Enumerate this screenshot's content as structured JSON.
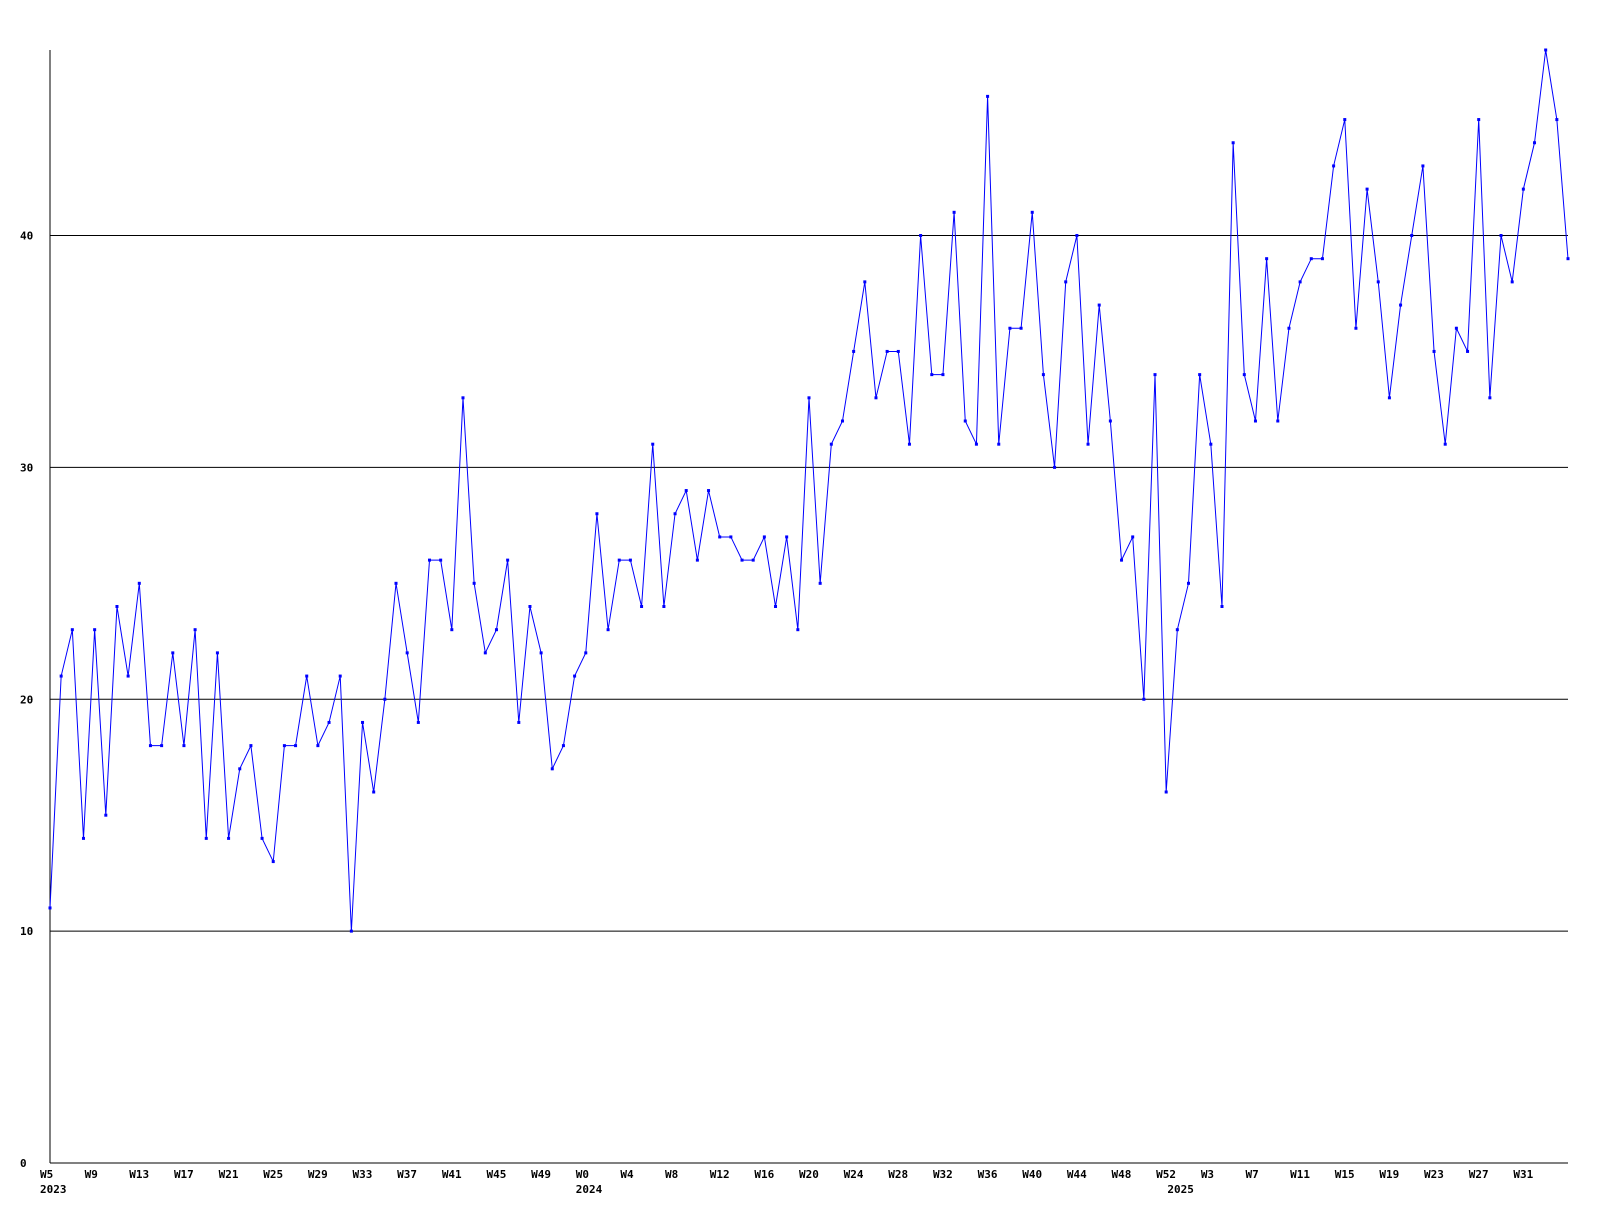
{
  "chart_data": {
    "type": "line",
    "title": "",
    "xlabel": "",
    "ylabel": "",
    "ylim": [
      0,
      48
    ],
    "yticks": [
      0,
      10,
      20,
      30,
      40
    ],
    "grid": true,
    "colors": {
      "series": "#0000ff",
      "grid": "#000000",
      "axis": "#000000"
    },
    "x_tick_labels": [
      {
        "index": 0,
        "label": "W5"
      },
      {
        "index": 4,
        "label": "W9"
      },
      {
        "index": 8,
        "label": "W13"
      },
      {
        "index": 12,
        "label": "W17"
      },
      {
        "index": 16,
        "label": "W21"
      },
      {
        "index": 20,
        "label": "W25"
      },
      {
        "index": 24,
        "label": "W29"
      },
      {
        "index": 28,
        "label": "W33"
      },
      {
        "index": 32,
        "label": "W37"
      },
      {
        "index": 36,
        "label": "W41"
      },
      {
        "index": 40,
        "label": "W45"
      },
      {
        "index": 44,
        "label": "W49"
      },
      {
        "index": 48,
        "label": "W0"
      },
      {
        "index": 52,
        "label": "W4"
      },
      {
        "index": 56,
        "label": "W8"
      },
      {
        "index": 60,
        "label": "W12"
      },
      {
        "index": 64,
        "label": "W16"
      },
      {
        "index": 68,
        "label": "W20"
      },
      {
        "index": 72,
        "label": "W24"
      },
      {
        "index": 76,
        "label": "W28"
      },
      {
        "index": 80,
        "label": "W32"
      },
      {
        "index": 84,
        "label": "W36"
      },
      {
        "index": 88,
        "label": "W40"
      },
      {
        "index": 92,
        "label": "W44"
      },
      {
        "index": 96,
        "label": "W48"
      },
      {
        "index": 100,
        "label": "W52"
      },
      {
        "index": 104,
        "label": "W3"
      },
      {
        "index": 108,
        "label": "W7"
      },
      {
        "index": 112,
        "label": "W11"
      },
      {
        "index": 116,
        "label": "W15"
      },
      {
        "index": 120,
        "label": "W19"
      },
      {
        "index": 124,
        "label": "W23"
      },
      {
        "index": 128,
        "label": "W27"
      },
      {
        "index": 132,
        "label": "W31"
      }
    ],
    "year_labels": [
      {
        "index": 0,
        "label": "2023"
      },
      {
        "index": 48,
        "label": "2024"
      },
      {
        "index": 101,
        "label": "2025"
      }
    ],
    "series": [
      {
        "values": [
          11,
          21,
          23,
          14,
          23,
          15,
          24,
          21,
          25,
          18,
          18,
          22,
          18,
          23,
          14,
          22,
          14,
          17,
          18,
          14,
          13,
          18,
          18,
          21,
          18,
          19,
          21,
          10,
          19,
          16,
          20,
          25,
          22,
          19,
          26,
          26,
          23,
          33,
          25,
          22,
          23,
          26,
          19,
          24,
          22,
          17,
          18,
          21,
          22,
          28,
          23,
          26,
          26,
          24,
          31,
          24,
          28,
          29,
          26,
          29,
          27,
          27,
          26,
          26,
          27,
          24,
          27,
          23,
          33,
          25,
          31,
          32,
          35,
          38,
          33,
          35,
          35,
          31,
          40,
          34,
          34,
          41,
          32,
          31,
          46,
          31,
          36,
          36,
          41,
          34,
          30,
          38,
          40,
          31,
          37,
          32,
          26,
          27,
          20,
          34,
          16,
          23,
          25,
          34,
          31,
          24,
          44,
          34,
          32,
          39,
          32,
          36,
          38,
          39,
          39,
          43,
          45,
          36,
          42,
          38,
          33,
          37,
          40,
          43,
          35,
          31,
          36,
          35,
          45,
          33,
          40,
          38,
          42,
          44,
          48,
          45,
          39
        ]
      }
    ]
  }
}
